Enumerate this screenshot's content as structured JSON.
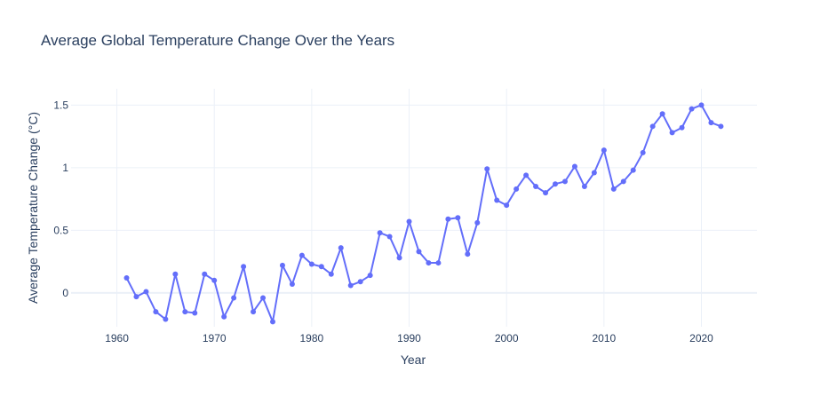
{
  "chart_data": {
    "type": "line",
    "title": "Average Global Temperature Change Over the Years",
    "xlabel": "Year",
    "ylabel": "Average Temperature Change (°C)",
    "xlim": [
      1955.3,
      2025.7
    ],
    "ylim": [
      -0.27,
      1.63
    ],
    "x_ticks": [
      1960,
      1970,
      1980,
      1990,
      2000,
      2010,
      2020
    ],
    "y_ticks": [
      0,
      0.5,
      1,
      1.5
    ],
    "y_tick_labels": [
      "0",
      "0.5",
      "1",
      "1.5"
    ],
    "grid": true,
    "legend": "none",
    "colors": {
      "line": "#636efa",
      "grid": "#ebf0f8",
      "zero_line": "#ebf0f8",
      "text": "#2a3f5f"
    },
    "series": [
      {
        "x": [
          1961,
          1962,
          1963,
          1964,
          1965,
          1966,
          1967,
          1968,
          1969,
          1970,
          1971,
          1972,
          1973,
          1974,
          1975,
          1976,
          1977,
          1978,
          1979,
          1980,
          1981,
          1982,
          1983,
          1984,
          1985,
          1986,
          1987,
          1988,
          1989,
          1990,
          1991,
          1992,
          1993,
          1994,
          1995,
          1996,
          1997,
          1998,
          1999,
          2000,
          2001,
          2002,
          2003,
          2004,
          2005,
          2006,
          2007,
          2008,
          2009,
          2010,
          2011,
          2012,
          2013,
          2014,
          2015,
          2016,
          2017,
          2018,
          2019,
          2020,
          2021,
          2022
        ],
        "values": [
          0.12,
          -0.03,
          0.01,
          -0.15,
          -0.21,
          0.15,
          -0.15,
          -0.16,
          0.15,
          0.1,
          -0.19,
          -0.04,
          0.21,
          -0.15,
          -0.04,
          -0.23,
          0.22,
          0.07,
          0.3,
          0.23,
          0.21,
          0.15,
          0.36,
          0.06,
          0.09,
          0.14,
          0.48,
          0.45,
          0.28,
          0.57,
          0.33,
          0.24,
          0.24,
          0.59,
          0.6,
          0.31,
          0.56,
          0.99,
          0.74,
          0.7,
          0.83,
          0.94,
          0.85,
          0.8,
          0.87,
          0.89,
          1.01,
          0.85,
          0.96,
          1.14,
          0.83,
          0.89,
          0.98,
          1.12,
          1.33,
          1.43,
          1.28,
          1.32,
          1.47,
          1.5,
          1.36,
          1.33
        ]
      }
    ]
  }
}
